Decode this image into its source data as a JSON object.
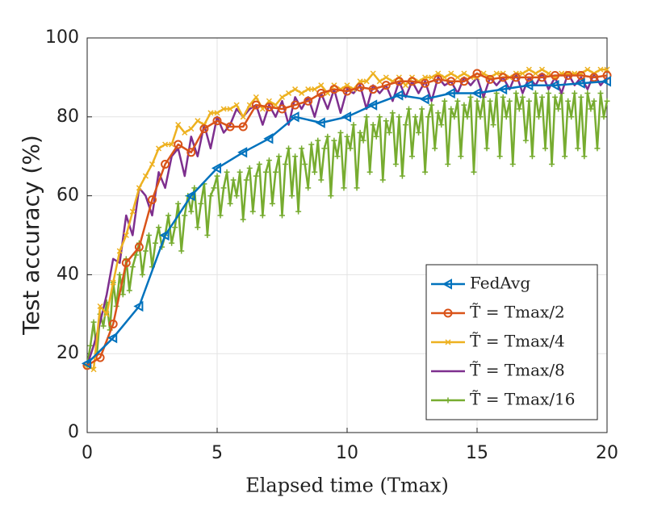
{
  "chart_data": {
    "type": "line",
    "xlabel": "Elapsed time (Tmax)",
    "ylabel": "Test accuracy (%)",
    "xlim": [
      0,
      20
    ],
    "xticks": [
      0,
      5,
      10,
      15,
      20
    ],
    "ylim": [
      0,
      100
    ],
    "yticks": [
      0,
      20,
      40,
      60,
      80,
      100
    ],
    "grid": true,
    "legend": "lower right",
    "series": [
      {
        "name": "FedAvg",
        "color": "#0072BD",
        "marker": "triangle-left",
        "x": [
          0,
          1,
          2,
          3,
          4,
          5,
          6,
          7,
          8,
          9,
          10,
          11,
          12,
          13,
          14,
          15,
          16,
          17,
          18,
          19,
          20
        ],
        "values": [
          17.5,
          24,
          32,
          50,
          60,
          67,
          71,
          74.5,
          80,
          78.5,
          80,
          83,
          85.5,
          84.5,
          86,
          86,
          87,
          88,
          88,
          88.5,
          89
        ]
      },
      {
        "name": "T̃ = Tmax/2",
        "color": "#D95319",
        "marker": "circle",
        "x": [
          0,
          0.5,
          1,
          1.5,
          2,
          2.5,
          3,
          3.5,
          4,
          4.5,
          5,
          5.5,
          6,
          6.5,
          7,
          7.5,
          8,
          8.5,
          9,
          9.5,
          10,
          10.5,
          11,
          11.5,
          12,
          12.5,
          13,
          13.5,
          14,
          14.5,
          15,
          15.5,
          16,
          16.5,
          17,
          17.5,
          18,
          18.5,
          19,
          19.5,
          20
        ],
        "values": [
          17,
          19,
          27.5,
          43,
          47,
          59,
          68,
          73,
          71,
          77,
          79,
          77.5,
          77.5,
          83,
          82.5,
          82,
          83,
          84,
          86,
          87,
          86.5,
          87.5,
          87,
          88,
          89,
          89,
          88.5,
          89.5,
          89,
          89,
          91,
          89.5,
          90,
          90,
          90,
          90,
          90.5,
          90.5,
          90.5,
          90,
          90.5
        ]
      },
      {
        "name": "T̃ = Tmax/4",
        "color": "#EDB120",
        "marker": "x",
        "x": [
          0,
          0.25,
          0.5,
          0.75,
          1,
          1.25,
          1.5,
          1.75,
          2,
          2.25,
          2.5,
          2.75,
          3,
          3.25,
          3.5,
          3.75,
          4,
          4.25,
          4.5,
          4.75,
          5,
          5.25,
          5.5,
          5.75,
          6,
          6.25,
          6.5,
          6.75,
          7,
          7.25,
          7.5,
          7.75,
          8,
          8.25,
          8.5,
          8.75,
          9,
          9.25,
          9.5,
          9.75,
          10,
          10.25,
          10.5,
          10.75,
          11,
          11.25,
          11.5,
          11.75,
          12,
          12.25,
          12.5,
          12.75,
          13,
          13.25,
          13.5,
          13.75,
          14,
          14.25,
          14.5,
          14.75,
          15,
          15.25,
          15.5,
          15.75,
          16,
          16.25,
          16.5,
          16.75,
          17,
          17.25,
          17.5,
          17.75,
          18,
          18.25,
          18.5,
          18.75,
          19,
          19.25,
          19.5,
          19.75,
          20
        ],
        "values": [
          17,
          16,
          32,
          30,
          38,
          46,
          50,
          56,
          62,
          65,
          68,
          72,
          73,
          73,
          78,
          76,
          77,
          79,
          78,
          81,
          81,
          82,
          82,
          83,
          80,
          83,
          85,
          82,
          84,
          83,
          85,
          86,
          87,
          86,
          87,
          87,
          88,
          86,
          88,
          87,
          88,
          87,
          89,
          89,
          91,
          89,
          90,
          89,
          90,
          88,
          90,
          89,
          90,
          90,
          91,
          90,
          91,
          90,
          91,
          90,
          90,
          91,
          90,
          91,
          91,
          90,
          91,
          91,
          92,
          91,
          92,
          91,
          90,
          91,
          91,
          91,
          91,
          92,
          91,
          92,
          92
        ]
      },
      {
        "name": "T̃ = Tmax/8",
        "color": "#7E2F8E",
        "marker": "none",
        "x": [
          0,
          0.25,
          0.5,
          0.75,
          1,
          1.25,
          1.5,
          1.75,
          2,
          2.25,
          2.5,
          2.75,
          3,
          3.25,
          3.5,
          3.75,
          4,
          4.25,
          4.5,
          4.75,
          5,
          5.25,
          5.5,
          5.75,
          6,
          6.25,
          6.5,
          6.75,
          7,
          7.25,
          7.5,
          7.75,
          8,
          8.25,
          8.5,
          8.75,
          9,
          9.25,
          9.5,
          9.75,
          10,
          10.25,
          10.5,
          10.75,
          11,
          11.25,
          11.5,
          11.75,
          12,
          12.25,
          12.5,
          12.75,
          13,
          13.25,
          13.5,
          13.75,
          14,
          14.25,
          14.5,
          14.75,
          15,
          15.25,
          15.5,
          15.75,
          16,
          16.25,
          16.5,
          16.75,
          17,
          17.25,
          17.5,
          17.75,
          18,
          18.25,
          18.5,
          18.75,
          19,
          19.25,
          19.5,
          19.75,
          20
        ],
        "values": [
          17,
          22,
          28,
          35,
          44,
          43,
          55,
          50,
          62,
          60,
          55,
          66,
          62,
          70,
          72,
          65,
          75,
          70,
          78,
          72,
          80,
          76,
          78,
          82,
          80,
          82,
          83,
          78,
          83,
          80,
          84,
          78,
          85,
          82,
          85,
          80,
          86,
          82,
          87,
          81,
          87,
          86,
          88,
          82,
          88,
          86,
          88,
          84,
          89,
          85,
          89,
          86,
          89,
          84,
          90,
          88,
          89,
          86,
          90,
          88,
          90,
          85,
          90,
          88,
          90,
          87,
          91,
          86,
          90,
          88,
          91,
          87,
          90,
          86,
          91,
          88,
          90,
          87,
          91,
          88,
          90
        ]
      },
      {
        "name": "T̃ = Tmax/16",
        "color": "#77AC30",
        "marker": "plus",
        "x": [
          0,
          0.125,
          0.25,
          0.375,
          0.5,
          0.625,
          0.75,
          0.875,
          1,
          1.125,
          1.25,
          1.375,
          1.5,
          1.625,
          1.75,
          1.875,
          2,
          2.125,
          2.25,
          2.375,
          2.5,
          2.625,
          2.75,
          2.875,
          3,
          3.125,
          3.25,
          3.375,
          3.5,
          3.625,
          3.75,
          3.875,
          4,
          4.125,
          4.25,
          4.375,
          4.5,
          4.625,
          4.75,
          4.875,
          5,
          5.125,
          5.25,
          5.375,
          5.5,
          5.625,
          5.75,
          5.875,
          6,
          6.125,
          6.25,
          6.375,
          6.5,
          6.625,
          6.75,
          6.875,
          7,
          7.125,
          7.25,
          7.375,
          7.5,
          7.625,
          7.75,
          7.875,
          8,
          8.125,
          8.25,
          8.375,
          8.5,
          8.625,
          8.75,
          8.875,
          9,
          9.125,
          9.25,
          9.375,
          9.5,
          9.625,
          9.75,
          9.875,
          10,
          10.125,
          10.25,
          10.375,
          10.5,
          10.625,
          10.75,
          10.875,
          11,
          11.125,
          11.25,
          11.375,
          11.5,
          11.625,
          11.75,
          11.875,
          12,
          12.125,
          12.25,
          12.375,
          12.5,
          12.625,
          12.75,
          12.875,
          13,
          13.125,
          13.25,
          13.375,
          13.5,
          13.625,
          13.75,
          13.875,
          14,
          14.125,
          14.25,
          14.375,
          14.5,
          14.625,
          14.75,
          14.875,
          15,
          15.125,
          15.25,
          15.375,
          15.5,
          15.625,
          15.75,
          15.875,
          16,
          16.125,
          16.25,
          16.375,
          16.5,
          16.625,
          16.75,
          16.875,
          17,
          17.125,
          17.25,
          17.375,
          17.5,
          17.625,
          17.75,
          17.875,
          18,
          18.125,
          18.25,
          18.375,
          18.5,
          18.625,
          18.75,
          18.875,
          19,
          19.125,
          19.25,
          19.375,
          19.5,
          19.625,
          19.75,
          19.875,
          20
        ],
        "values": [
          17,
          22,
          28,
          20,
          30,
          27,
          33,
          26,
          38,
          32,
          40,
          35,
          44,
          36,
          42,
          45,
          48,
          40,
          46,
          50,
          42,
          48,
          52,
          47,
          50,
          55,
          48,
          52,
          58,
          46,
          55,
          60,
          56,
          62,
          52,
          58,
          63,
          50,
          60,
          62,
          65,
          55,
          62,
          66,
          58,
          64,
          60,
          66,
          54,
          64,
          67,
          56,
          65,
          68,
          55,
          66,
          69,
          58,
          66,
          70,
          55,
          68,
          72,
          60,
          70,
          56,
          72,
          68,
          62,
          73,
          66,
          74,
          64,
          72,
          75,
          60,
          74,
          70,
          76,
          62,
          75,
          72,
          78,
          62,
          76,
          74,
          80,
          66,
          78,
          75,
          80,
          64,
          79,
          76,
          81,
          68,
          80,
          65,
          78,
          82,
          70,
          80,
          76,
          82,
          66,
          80,
          83,
          72,
          81,
          78,
          84,
          68,
          82,
          80,
          84,
          70,
          83,
          80,
          85,
          66,
          84,
          80,
          85,
          72,
          84,
          78,
          86,
          70,
          85,
          80,
          84,
          68,
          86,
          82,
          85,
          74,
          84,
          70,
          86,
          80,
          85,
          72,
          86,
          68,
          85,
          82,
          86,
          70,
          84,
          80,
          86,
          72,
          85,
          70,
          86,
          82,
          84,
          72,
          86,
          80,
          84
        ]
      }
    ]
  }
}
